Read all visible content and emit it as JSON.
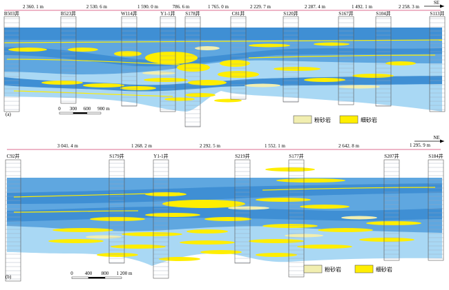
{
  "panel_a": {
    "label": "(a)",
    "direction": "SE",
    "wells": [
      "B503井",
      "B523井",
      "W114井",
      "Y1-1井",
      "S178井",
      "C81井",
      "S120井",
      "S167井",
      "S104井",
      "S113井"
    ],
    "distances": [
      "2 360. 1 m",
      "2 530. 6 m",
      "1 590. 0 m",
      "786. 6 m",
      "1 765. 0 m",
      "2 229. 7 m",
      "2 287. 4 m",
      "1 492. 1 m",
      "2 258. 3 m"
    ],
    "scale": {
      "ticks": [
        "0",
        "300",
        "600",
        "900 m"
      ]
    },
    "legend": [
      {
        "label": "粉砂岩",
        "color": "#f1eeb0"
      },
      {
        "label": "细砂岩",
        "color": "#ffee00"
      }
    ]
  },
  "panel_b": {
    "label": "(b)",
    "direction": "NE",
    "wells": [
      "C92井",
      "S179井",
      "Y1-1井",
      "S219井",
      "S177井",
      "S207井",
      "S184井"
    ],
    "distances": [
      "3 041. 4 m",
      "1 268. 2 m",
      "2 292. 5 m",
      "1 552. 1 m",
      "2 642. 8 m",
      "1 295. 9 m"
    ],
    "scale": {
      "ticks": [
        "0",
        "400",
        "800",
        "1 200 m"
      ]
    },
    "legend": [
      {
        "label": "粉砂岩",
        "color": "#f1eeb0"
      },
      {
        "label": "细砂岩",
        "color": "#ffee00"
      }
    ]
  },
  "colors": {
    "deep_blue": "#3f8fd4",
    "mid_blue": "#5fa7e0",
    "light_blue": "#a9d8f4",
    "fine_sandstone": "#ffee00",
    "siltstone": "#f1eeb0",
    "distance_line": "#d23a6a"
  }
}
